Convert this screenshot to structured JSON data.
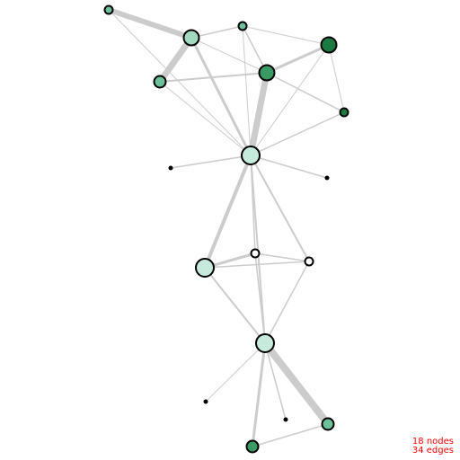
{
  "graph": {
    "stats": {
      "nodes_label": "18 nodes",
      "edges_label": "34 edges"
    },
    "colors": {
      "edge": "#cccccc",
      "node_stroke": "#000000",
      "label": "#ff0000",
      "palette": [
        "#ffffff",
        "#c6eadc",
        "#a2dac0",
        "#6cc09a",
        "#3a9a63",
        "#1b7a42",
        "#0a5a2c",
        "#000000"
      ]
    },
    "nodes": [
      {
        "id": "n0",
        "name": "node-top-left-small",
        "color": "#6cc09a",
        "size": "small"
      },
      {
        "id": "n1",
        "name": "node-upper-hub",
        "color": "#a2dac0",
        "size": "large"
      },
      {
        "id": "n2",
        "name": "node-top-small",
        "color": "#6cc09a",
        "size": "small"
      },
      {
        "id": "n3",
        "name": "node-top-right-dark",
        "color": "#1b7a42",
        "size": "large"
      },
      {
        "id": "n4",
        "name": "node-upper-left",
        "color": "#6cc09a",
        "size": "medium"
      },
      {
        "id": "n5",
        "name": "node-upper-center",
        "color": "#3a9a63",
        "size": "large"
      },
      {
        "id": "n6",
        "name": "node-right-small",
        "color": "#1b7a42",
        "size": "small"
      },
      {
        "id": "n7",
        "name": "node-central-hub",
        "color": "#c6eadc",
        "size": "xlarge"
      },
      {
        "id": "n8",
        "name": "node-left-dot",
        "color": "#000000",
        "size": "dot"
      },
      {
        "id": "n9",
        "name": "node-right-dot",
        "color": "#000000",
        "size": "dot"
      },
      {
        "id": "n10",
        "name": "node-mid-small",
        "color": "#ffffff",
        "size": "small"
      },
      {
        "id": "n11",
        "name": "node-mid-right",
        "color": "#ffffff",
        "size": "small"
      },
      {
        "id": "n12",
        "name": "node-mid-left",
        "color": "#c6eadc",
        "size": "xlarge"
      },
      {
        "id": "n13",
        "name": "node-lower-hub",
        "color": "#c6eadc",
        "size": "xlarge"
      },
      {
        "id": "n14",
        "name": "node-lower-left-dot",
        "color": "#000000",
        "size": "dot"
      },
      {
        "id": "n15",
        "name": "node-lower-dot",
        "color": "#000000",
        "size": "dot"
      },
      {
        "id": "n16",
        "name": "node-lower-right",
        "color": "#6cc09a",
        "size": "medium"
      },
      {
        "id": "n17",
        "name": "node-bottom",
        "color": "#3a9a63",
        "size": "medium"
      }
    ],
    "edges": [
      {
        "s": "n0",
        "t": "n1",
        "w": 6
      },
      {
        "s": "n0",
        "t": "n7",
        "w": 1
      },
      {
        "s": "n1",
        "t": "n4",
        "w": 7
      },
      {
        "s": "n1",
        "t": "n2",
        "w": 1.5
      },
      {
        "s": "n1",
        "t": "n7",
        "w": 3
      },
      {
        "s": "n1",
        "t": "n5",
        "w": 1
      },
      {
        "s": "n2",
        "t": "n5",
        "w": 1.5
      },
      {
        "s": "n2",
        "t": "n3",
        "w": 1
      },
      {
        "s": "n2",
        "t": "n7",
        "w": 1
      },
      {
        "s": "n3",
        "t": "n5",
        "w": 3
      },
      {
        "s": "n3",
        "t": "n6",
        "w": 1
      },
      {
        "s": "n3",
        "t": "n7",
        "w": 1
      },
      {
        "s": "n4",
        "t": "n5",
        "w": 2
      },
      {
        "s": "n4",
        "t": "n7",
        "w": 1
      },
      {
        "s": "n5",
        "t": "n7",
        "w": 7
      },
      {
        "s": "n5",
        "t": "n6",
        "w": 1.5
      },
      {
        "s": "n6",
        "t": "n7",
        "w": 1.5
      },
      {
        "s": "n7",
        "t": "n8",
        "w": 1.5
      },
      {
        "s": "n7",
        "t": "n9",
        "w": 1.5
      },
      {
        "s": "n7",
        "t": "n12",
        "w": 4
      },
      {
        "s": "n7",
        "t": "n10",
        "w": 1.5
      },
      {
        "s": "n7",
        "t": "n11",
        "w": 2
      },
      {
        "s": "n7",
        "t": "n13",
        "w": 2
      },
      {
        "s": "n10",
        "t": "n12",
        "w": 3
      },
      {
        "s": "n10",
        "t": "n11",
        "w": 1.5
      },
      {
        "s": "n12",
        "t": "n11",
        "w": 1.5
      },
      {
        "s": "n12",
        "t": "n13",
        "w": 2
      },
      {
        "s": "n10",
        "t": "n13",
        "w": 1.5
      },
      {
        "s": "n11",
        "t": "n13",
        "w": 1.5
      },
      {
        "s": "n13",
        "t": "n14",
        "w": 1
      },
      {
        "s": "n13",
        "t": "n15",
        "w": 1.5
      },
      {
        "s": "n13",
        "t": "n16",
        "w": 8
      },
      {
        "s": "n13",
        "t": "n17",
        "w": 3
      },
      {
        "s": "n17",
        "t": "n16",
        "w": 1.5
      }
    ]
  }
}
